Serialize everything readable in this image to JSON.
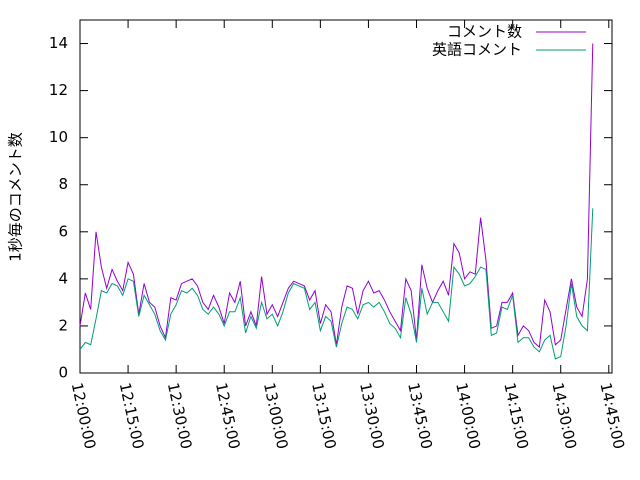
{
  "chart_data": {
    "type": "line",
    "ylabel": "1秒毎のコメント数",
    "x": [
      "12:00:00",
      "12:01:40",
      "12:03:20",
      "12:05:00",
      "12:06:40",
      "12:08:20",
      "12:10:00",
      "12:11:40",
      "12:13:20",
      "12:15:00",
      "12:16:40",
      "12:18:20",
      "12:20:00",
      "12:21:40",
      "12:23:20",
      "12:25:00",
      "12:26:40",
      "12:28:20",
      "12:30:00",
      "12:31:40",
      "12:33:20",
      "12:35:00",
      "12:36:40",
      "12:38:20",
      "12:40:00",
      "12:41:40",
      "12:43:20",
      "12:45:00",
      "12:46:40",
      "12:48:20",
      "12:50:00",
      "12:51:40",
      "12:53:20",
      "12:55:00",
      "12:56:40",
      "12:58:20",
      "13:00:00",
      "13:01:40",
      "13:03:20",
      "13:05:00",
      "13:06:40",
      "13:08:20",
      "13:10:00",
      "13:11:40",
      "13:13:20",
      "13:15:00",
      "13:16:40",
      "13:18:20",
      "13:20:00",
      "13:21:40",
      "13:23:20",
      "13:25:00",
      "13:26:40",
      "13:28:20",
      "13:30:00",
      "13:31:40",
      "13:33:20",
      "13:35:00",
      "13:36:40",
      "13:38:20",
      "13:40:00",
      "13:41:40",
      "13:43:20",
      "13:45:00",
      "13:46:40",
      "13:48:20",
      "13:50:00",
      "13:51:40",
      "13:53:20",
      "13:55:00",
      "13:56:40",
      "13:58:20",
      "14:00:00",
      "14:01:40",
      "14:03:20",
      "14:05:00",
      "14:06:40",
      "14:08:20",
      "14:10:00",
      "14:11:40",
      "14:13:20",
      "14:15:00",
      "14:16:40",
      "14:18:20",
      "14:20:00",
      "14:21:40",
      "14:23:20",
      "14:25:00",
      "14:26:40",
      "14:28:20",
      "14:30:00",
      "14:31:40",
      "14:33:20",
      "14:35:00",
      "14:36:40",
      "14:38:20",
      "14:40:00"
    ],
    "series": [
      {
        "name": "コメント数",
        "color": "#9400d3",
        "values": [
          2.0,
          3.4,
          2.7,
          6.0,
          4.5,
          3.6,
          4.4,
          3.9,
          3.5,
          4.7,
          4.2,
          2.5,
          3.8,
          3.0,
          2.8,
          2.0,
          1.5,
          3.2,
          3.1,
          3.8,
          3.9,
          4.0,
          3.7,
          3.0,
          2.7,
          3.3,
          2.8,
          2.1,
          3.4,
          3.0,
          3.9,
          2.0,
          2.6,
          2.0,
          4.1,
          2.5,
          2.9,
          2.4,
          3.0,
          3.6,
          3.9,
          3.8,
          3.7,
          3.1,
          3.5,
          2.1,
          2.9,
          2.6,
          1.2,
          2.8,
          3.7,
          3.6,
          2.5,
          3.5,
          3.9,
          3.4,
          3.5,
          3.1,
          2.6,
          2.2,
          1.8,
          4.0,
          3.5,
          1.4,
          4.6,
          3.6,
          3.0,
          3.5,
          3.9,
          3.3,
          5.5,
          5.1,
          4.0,
          4.3,
          4.2,
          6.6,
          4.8,
          1.9,
          2.0,
          3.0,
          3.0,
          3.4,
          1.6,
          2.0,
          1.8,
          1.3,
          1.1,
          3.1,
          2.6,
          1.2,
          1.4,
          2.7,
          4.0,
          2.8,
          2.4,
          4.0,
          14.0
        ]
      },
      {
        "name": "英語コメント",
        "color": "#009e73",
        "values": [
          1.0,
          1.3,
          1.2,
          2.3,
          3.5,
          3.4,
          3.8,
          3.7,
          3.3,
          4.0,
          3.9,
          2.4,
          3.3,
          2.9,
          2.5,
          1.8,
          1.4,
          2.5,
          2.9,
          3.5,
          3.4,
          3.6,
          3.3,
          2.7,
          2.5,
          2.8,
          2.5,
          2.0,
          2.6,
          2.6,
          3.2,
          1.7,
          2.4,
          1.9,
          3.0,
          2.3,
          2.5,
          2.0,
          2.6,
          3.4,
          3.8,
          3.7,
          3.6,
          2.7,
          3.0,
          1.8,
          2.4,
          2.2,
          1.1,
          2.1,
          2.8,
          2.7,
          2.3,
          2.9,
          3.0,
          2.8,
          3.0,
          2.6,
          2.1,
          1.9,
          1.5,
          3.2,
          2.5,
          1.3,
          3.6,
          2.5,
          3.0,
          3.0,
          2.6,
          2.2,
          4.5,
          4.2,
          3.7,
          3.8,
          4.1,
          4.5,
          4.4,
          1.6,
          1.7,
          2.8,
          2.7,
          3.3,
          1.3,
          1.5,
          1.5,
          1.1,
          0.9,
          1.4,
          1.6,
          0.6,
          0.7,
          2.0,
          3.8,
          2.4,
          2.0,
          1.8,
          7.0
        ]
      }
    ],
    "xlim": [
      "12:00:00",
      "14:46:00"
    ],
    "xticks": [
      "12:00:00",
      "12:15:00",
      "12:30:00",
      "12:45:00",
      "13:00:00",
      "13:15:00",
      "13:30:00",
      "13:45:00",
      "14:00:00",
      "14:15:00",
      "14:30:00",
      "14:45:00"
    ],
    "ylim": [
      0,
      15
    ],
    "yticks": [
      0,
      2,
      4,
      6,
      8,
      10,
      12,
      14
    ],
    "legend": "top-right"
  }
}
